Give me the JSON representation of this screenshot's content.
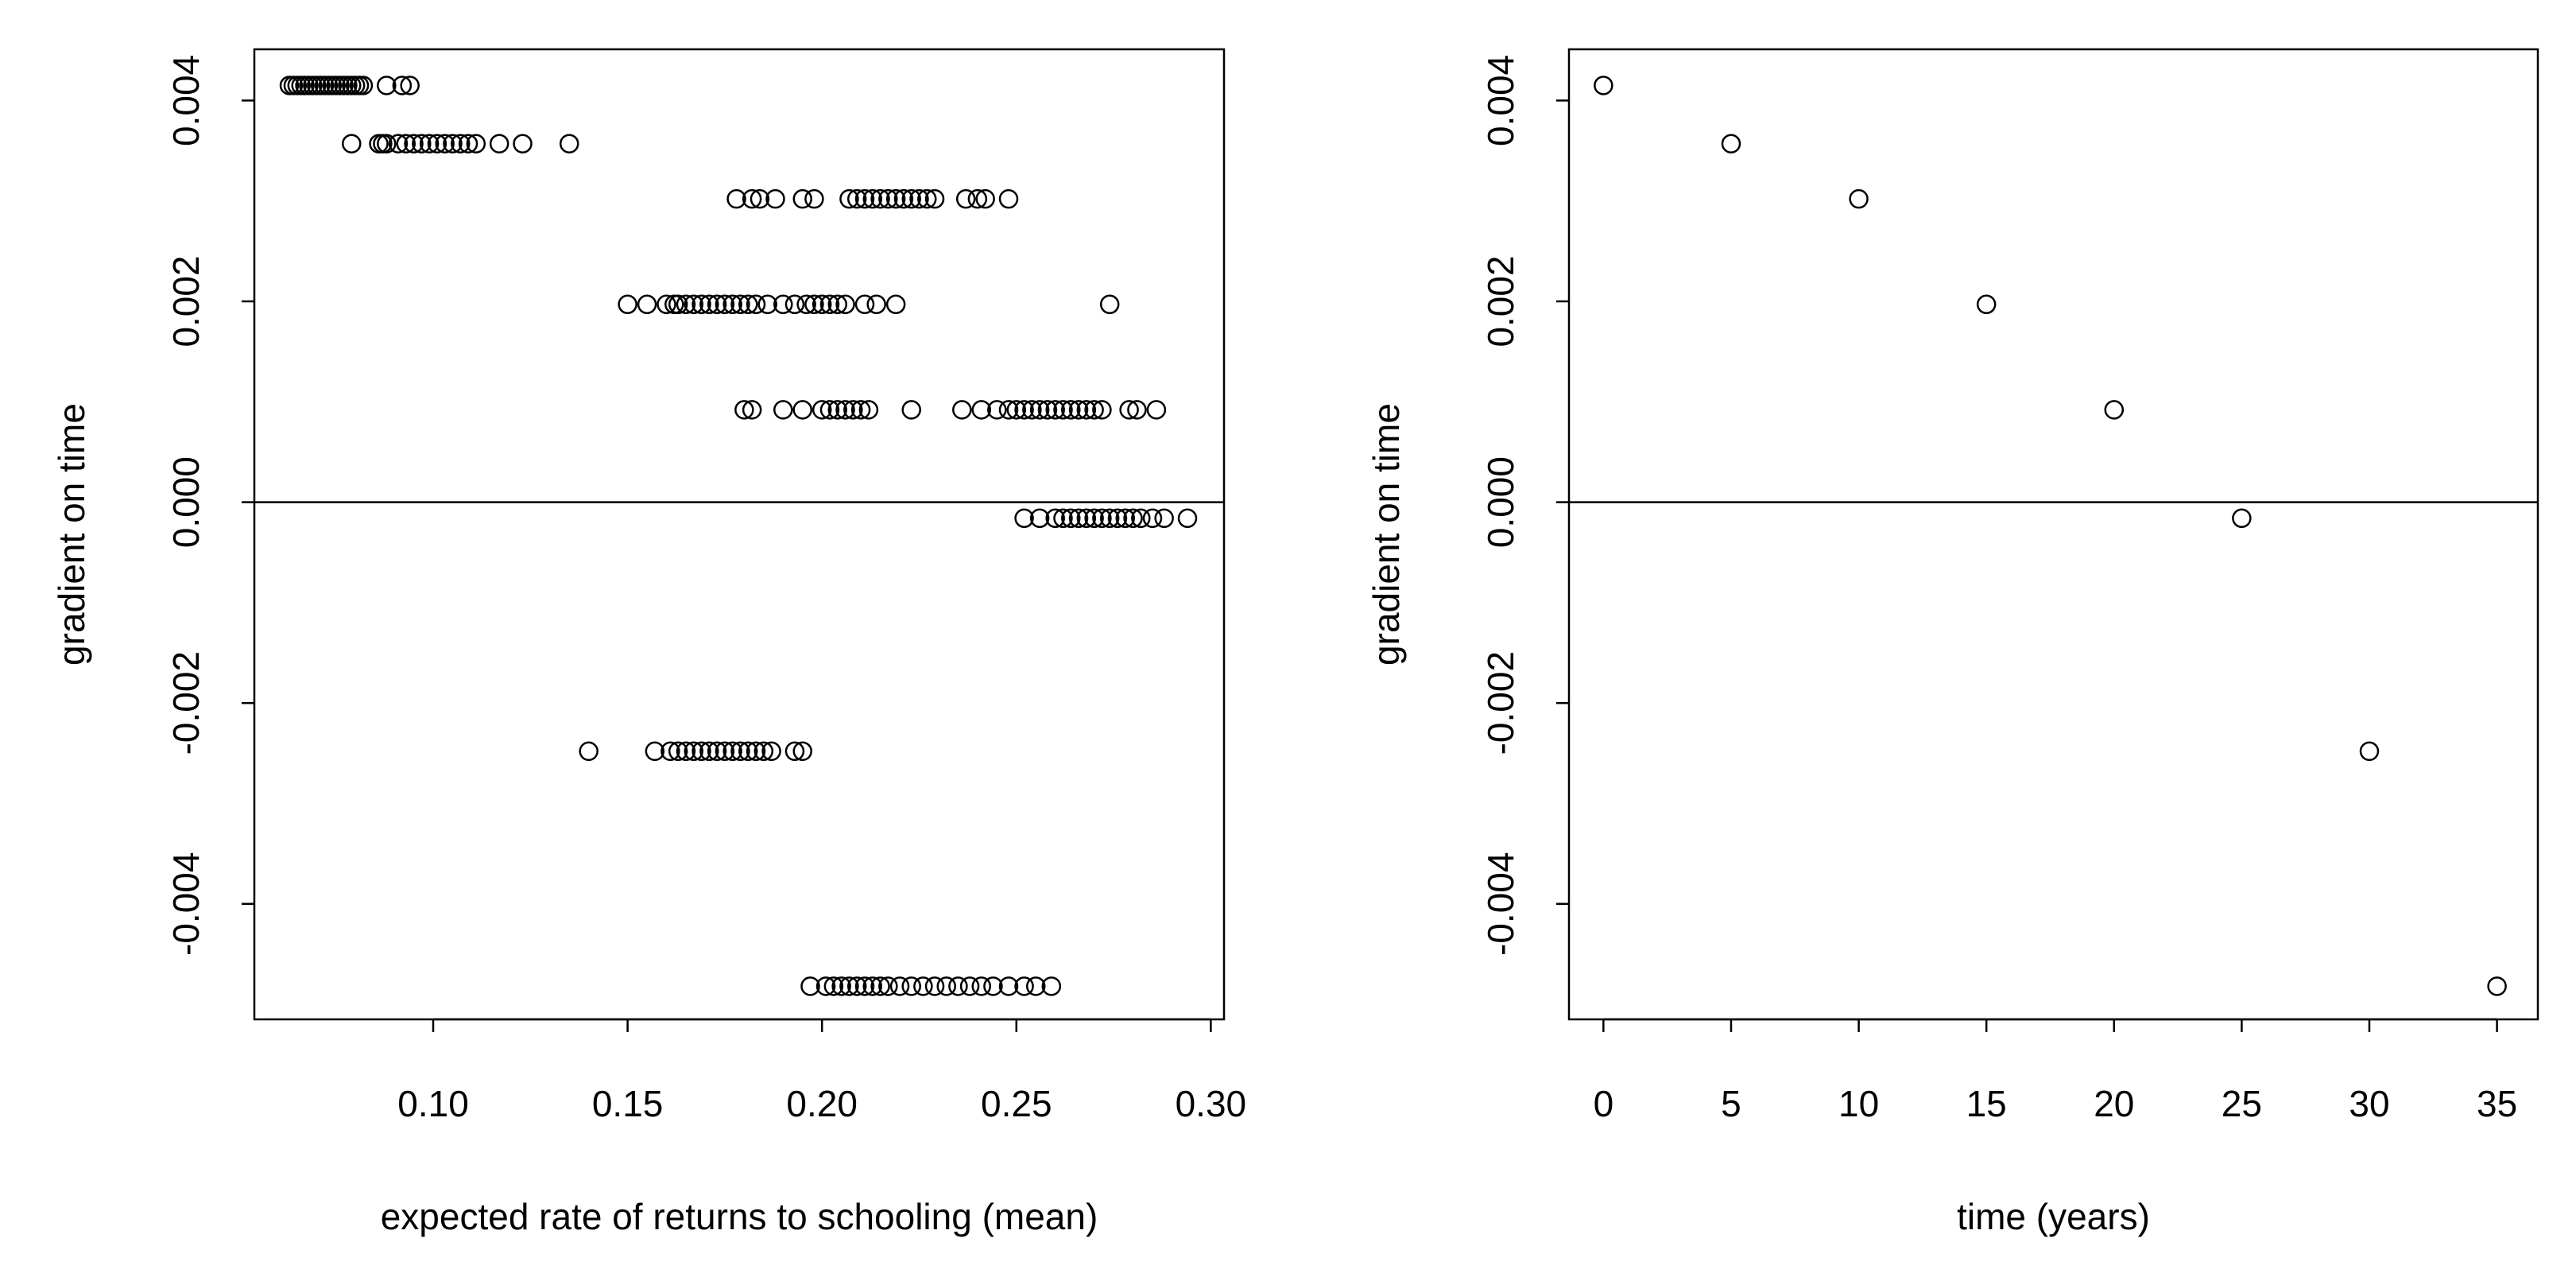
{
  "chart_data": [
    {
      "type": "scatter",
      "x_label": "expected rate of returns to schooling (mean)",
      "y_label": "gradient on time",
      "color": "#000000",
      "hline": 0,
      "xlim": [
        0.054,
        0.3034
      ],
      "ylim": [
        -0.00515,
        0.00451
      ],
      "xticks": [
        {
          "value": 0.1,
          "label": "0.10"
        },
        0.15,
        {
          "value": 0.2,
          "label": "0.20"
        },
        0.25,
        {
          "value": 0.3,
          "label": "0.30"
        }
      ],
      "yticks": [
        -0.004,
        -0.002,
        {
          "value": 0,
          "label": "0.000"
        },
        0.002,
        0.004
      ],
      "series": [
        {
          "x": [
            0.063,
            0.064,
            0.065,
            0.066,
            0.067,
            0.068,
            0.069,
            0.07,
            0.071,
            0.072,
            0.073,
            0.074,
            0.075,
            0.076,
            0.077,
            0.078,
            0.079,
            0.08,
            0.081,
            0.082,
            0.088,
            0.092,
            0.094
          ],
          "values": [
            0.00415,
            0.00415,
            0.00415,
            0.00415,
            0.00415,
            0.00415,
            0.00415,
            0.00415,
            0.00415,
            0.00415,
            0.00415,
            0.00415,
            0.00415,
            0.00415,
            0.00415,
            0.00415,
            0.00415,
            0.00415,
            0.00415,
            0.00415,
            0.00415,
            0.00415,
            0.00415
          ]
        },
        {
          "x": [
            0.079,
            0.086,
            0.087,
            0.088,
            0.091,
            0.093,
            0.095,
            0.097,
            0.099,
            0.101,
            0.103,
            0.105,
            0.107,
            0.109,
            0.111,
            0.117,
            0.123,
            0.135
          ],
          "values": [
            0.00357,
            0.00357,
            0.00357,
            0.00357,
            0.00357,
            0.00357,
            0.00357,
            0.00357,
            0.00357,
            0.00357,
            0.00357,
            0.00357,
            0.00357,
            0.00357,
            0.00357,
            0.00357,
            0.00357,
            0.00357
          ]
        },
        {
          "x": [
            0.178,
            0.182,
            0.184,
            0.188,
            0.195,
            0.198,
            0.207,
            0.209,
            0.211,
            0.213,
            0.215,
            0.217,
            0.219,
            0.221,
            0.223,
            0.225,
            0.227,
            0.229,
            0.237,
            0.24,
            0.242,
            0.248
          ],
          "values": [
            0.00302,
            0.00302,
            0.00302,
            0.00302,
            0.00302,
            0.00302,
            0.00302,
            0.00302,
            0.00302,
            0.00302,
            0.00302,
            0.00302,
            0.00302,
            0.00302,
            0.00302,
            0.00302,
            0.00302,
            0.00302,
            0.00302,
            0.00302,
            0.00302,
            0.00302
          ]
        },
        {
          "x": [
            0.15,
            0.155,
            0.16,
            0.162,
            0.163,
            0.165,
            0.167,
            0.169,
            0.171,
            0.173,
            0.175,
            0.177,
            0.179,
            0.181,
            0.183,
            0.186,
            0.19,
            0.193,
            0.196,
            0.198,
            0.2,
            0.202,
            0.204,
            0.206,
            0.211,
            0.214,
            0.219,
            0.274
          ],
          "values": [
            0.00197,
            0.00197,
            0.00197,
            0.00197,
            0.00197,
            0.00197,
            0.00197,
            0.00197,
            0.00197,
            0.00197,
            0.00197,
            0.00197,
            0.00197,
            0.00197,
            0.00197,
            0.00197,
            0.00197,
            0.00197,
            0.00197,
            0.00197,
            0.00197,
            0.00197,
            0.00197,
            0.00197,
            0.00197,
            0.00197,
            0.00197,
            0.00197
          ]
        },
        {
          "x": [
            0.18,
            0.182,
            0.19,
            0.195,
            0.2,
            0.202,
            0.204,
            0.206,
            0.208,
            0.21,
            0.212,
            0.223,
            0.236,
            0.241,
            0.245,
            0.248,
            0.25,
            0.252,
            0.254,
            0.256,
            0.258,
            0.26,
            0.262,
            0.264,
            0.266,
            0.268,
            0.27,
            0.272,
            0.279,
            0.281,
            0.286
          ],
          "values": [
            0.00092,
            0.00092,
            0.00092,
            0.00092,
            0.00092,
            0.00092,
            0.00092,
            0.00092,
            0.00092,
            0.00092,
            0.00092,
            0.00092,
            0.00092,
            0.00092,
            0.00092,
            0.00092,
            0.00092,
            0.00092,
            0.00092,
            0.00092,
            0.00092,
            0.00092,
            0.00092,
            0.00092,
            0.00092,
            0.00092,
            0.00092,
            0.00092,
            0.00092,
            0.00092,
            0.00092
          ]
        },
        {
          "x": [
            0.252,
            0.256,
            0.26,
            0.262,
            0.264,
            0.266,
            0.268,
            0.27,
            0.272,
            0.274,
            0.276,
            0.278,
            0.28,
            0.282,
            0.285,
            0.288,
            0.294
          ],
          "values": [
            -0.00016,
            -0.00016,
            -0.00016,
            -0.00016,
            -0.00016,
            -0.00016,
            -0.00016,
            -0.00016,
            -0.00016,
            -0.00016,
            -0.00016,
            -0.00016,
            -0.00016,
            -0.00016,
            -0.00016,
            -0.00016,
            -0.00016
          ]
        },
        {
          "x": [
            0.14,
            0.157,
            0.161,
            0.163,
            0.165,
            0.167,
            0.169,
            0.171,
            0.173,
            0.175,
            0.177,
            0.179,
            0.181,
            0.183,
            0.185,
            0.187,
            0.193,
            0.195
          ],
          "values": [
            -0.00248,
            -0.00248,
            -0.00248,
            -0.00248,
            -0.00248,
            -0.00248,
            -0.00248,
            -0.00248,
            -0.00248,
            -0.00248,
            -0.00248,
            -0.00248,
            -0.00248,
            -0.00248,
            -0.00248,
            -0.00248,
            -0.00248,
            -0.00248
          ]
        },
        {
          "x": [
            0.197,
            0.201,
            0.203,
            0.205,
            0.207,
            0.209,
            0.211,
            0.213,
            0.215,
            0.217,
            0.22,
            0.223,
            0.226,
            0.229,
            0.232,
            0.235,
            0.238,
            0.241,
            0.244,
            0.248,
            0.252,
            0.255,
            0.259
          ],
          "values": [
            -0.00482,
            -0.00482,
            -0.00482,
            -0.00482,
            -0.00482,
            -0.00482,
            -0.00482,
            -0.00482,
            -0.00482,
            -0.00482,
            -0.00482,
            -0.00482,
            -0.00482,
            -0.00482,
            -0.00482,
            -0.00482,
            -0.00482,
            -0.00482,
            -0.00482,
            -0.00482,
            -0.00482,
            -0.00482,
            -0.00482
          ]
        }
      ]
    },
    {
      "type": "scatter",
      "x_label": "time (years)",
      "y_label": "gradient on time",
      "color": "#000000",
      "hline": 0,
      "xlim": [
        -1.35,
        36.6
      ],
      "ylim": [
        -0.00515,
        0.00451
      ],
      "xticks": [
        0,
        5,
        10,
        15,
        20,
        25,
        30,
        35
      ],
      "yticks": [
        -0.004,
        -0.002,
        {
          "value": 0,
          "label": "0.000"
        },
        0.002,
        0.004
      ],
      "series": [
        {
          "x": [
            0,
            5,
            10,
            15,
            20,
            25,
            30,
            35
          ],
          "values": [
            0.00415,
            0.00357,
            0.00302,
            0.00197,
            0.00092,
            -0.00016,
            -0.00248,
            -0.00482
          ]
        }
      ]
    }
  ]
}
